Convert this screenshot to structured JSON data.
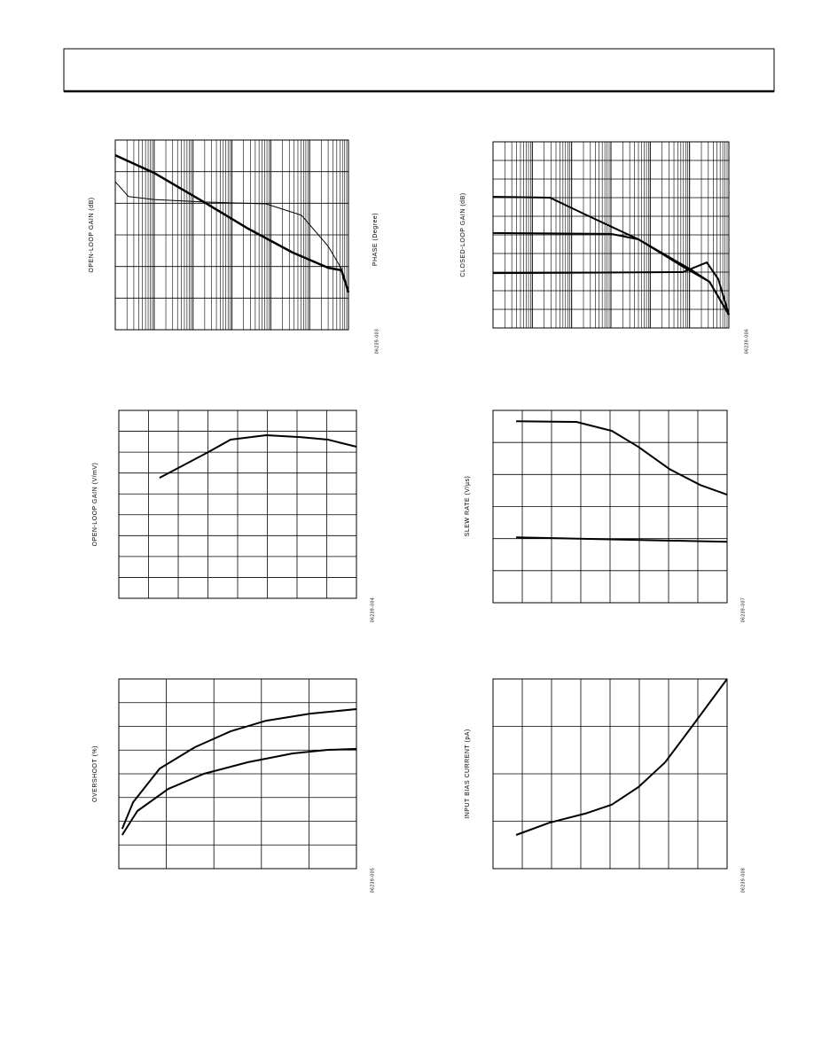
{
  "chart_data": [
    {
      "type": "line",
      "ylabel": "OPEN-LOOP GAIN (dB)",
      "y2label": "PHASE (Degree)",
      "figure_code": "06239-003",
      "xscale": "log",
      "xlim": [
        1,
        1000000
      ],
      "ylim": [
        0,
        6
      ],
      "ydivisions": 6,
      "series": [
        {
          "color": "#000000",
          "line_width": 2.5,
          "x": [
            1,
            10,
            190,
            2600,
            37000,
            300000,
            660000,
            1000000
          ],
          "values": [
            5.52,
            4.96,
            4.04,
            3.2,
            2.44,
            1.96,
            1.88,
            1.18
          ]
        },
        {
          "color": "#000000",
          "line_width": 1,
          "x": [
            1,
            2.2,
            10,
            190,
            7600,
            62000,
            300000,
            660000,
            1000000
          ],
          "values": [
            4.68,
            4.21,
            4.12,
            4.04,
            3.98,
            3.62,
            2.64,
            1.93,
            1.18
          ]
        }
      ]
    },
    {
      "type": "line",
      "ylabel": "CLOSED-LOOP GAIN (dB)",
      "figure_code": "06239-006",
      "xscale": "log",
      "xlim": [
        1,
        1000000
      ],
      "ylim": [
        0,
        10
      ],
      "ydivisions": 10,
      "series": [
        {
          "color": "#000000",
          "line_width": 2,
          "x": [
            1,
            28,
            220,
            5000,
            115000,
            320000,
            1000000
          ],
          "values": [
            7.05,
            7.0,
            6.1,
            4.76,
            3.1,
            2.48,
            0.71
          ]
        },
        {
          "color": "#000000",
          "line_width": 2,
          "x": [
            1,
            1000,
            5000,
            68000,
            320000,
            1000000
          ],
          "values": [
            5.1,
            5.05,
            4.76,
            3.29,
            2.48,
            0.71
          ]
        },
        {
          "color": "#000000",
          "line_width": 2,
          "x": [
            1,
            68000,
            275000,
            540000,
            1000000
          ],
          "values": [
            2.95,
            3.0,
            3.52,
            2.62,
            0.71
          ]
        }
      ]
    },
    {
      "type": "line",
      "ylabel": "OPEN-LOOP GAIN (V/mV)",
      "figure_code": "06239-004",
      "xlim": [
        0,
        8
      ],
      "ylim": [
        0,
        9
      ],
      "xdivisions": 8,
      "ydivisions": 9,
      "series": [
        {
          "color": "#000000",
          "line_width": 2,
          "x": [
            1.37,
            3.01,
            3.76,
            4.96,
            6.15,
            7.04,
            8.0
          ],
          "values": [
            5.77,
            7.0,
            7.6,
            7.81,
            7.72,
            7.6,
            7.26
          ]
        }
      ]
    },
    {
      "type": "line",
      "ylabel": "SLEW RATE (V/µs)",
      "figure_code": "06239-007",
      "xlim": [
        0,
        8
      ],
      "ylim": [
        0,
        6
      ],
      "xdivisions": 8,
      "ydivisions": 6,
      "series": [
        {
          "color": "#000000",
          "line_width": 2,
          "x": [
            0.79,
            2.85,
            4.06,
            4.97,
            6.03,
            7.09,
            8.0
          ],
          "values": [
            5.66,
            5.64,
            5.36,
            4.86,
            4.17,
            3.67,
            3.37
          ]
        },
        {
          "color": "#000000",
          "line_width": 2,
          "x": [
            0.79,
            8.0
          ],
          "values": [
            2.04,
            1.9
          ]
        }
      ]
    },
    {
      "type": "line",
      "ylabel": "OVERSHOOT (%)",
      "figure_code": "06239-005",
      "xlim": [
        0,
        5
      ],
      "ylim": [
        0,
        8
      ],
      "xdivisions": 5,
      "ydivisions": 8,
      "series": [
        {
          "color": "#000000",
          "line_width": 2,
          "x": [
            0.07,
            0.3,
            0.86,
            1.6,
            2.35,
            3.1,
            4.03,
            5.0
          ],
          "values": [
            1.68,
            2.8,
            4.22,
            5.12,
            5.79,
            6.24,
            6.54,
            6.73
          ]
        },
        {
          "color": "#000000",
          "line_width": 2,
          "x": [
            0.07,
            0.39,
            1.04,
            1.79,
            2.72,
            3.66,
            4.4,
            5.0
          ],
          "values": [
            1.42,
            2.43,
            3.36,
            4.0,
            4.49,
            4.86,
            5.01,
            5.05
          ]
        }
      ]
    },
    {
      "type": "line",
      "ylabel": "INPUT BIAS CURRENT (pA)",
      "figure_code": "06239-008",
      "xlim": [
        0,
        8
      ],
      "ylim": [
        0,
        4
      ],
      "xdivisions": 8,
      "ydivisions": 4,
      "series": [
        {
          "color": "#000000",
          "line_width": 2,
          "x": [
            0.79,
            1.94,
            3.15,
            4.06,
            4.97,
            5.88,
            6.79,
            8.0
          ],
          "values": [
            0.71,
            0.97,
            1.16,
            1.35,
            1.72,
            2.24,
            2.99,
            4.0
          ]
        }
      ]
    }
  ]
}
